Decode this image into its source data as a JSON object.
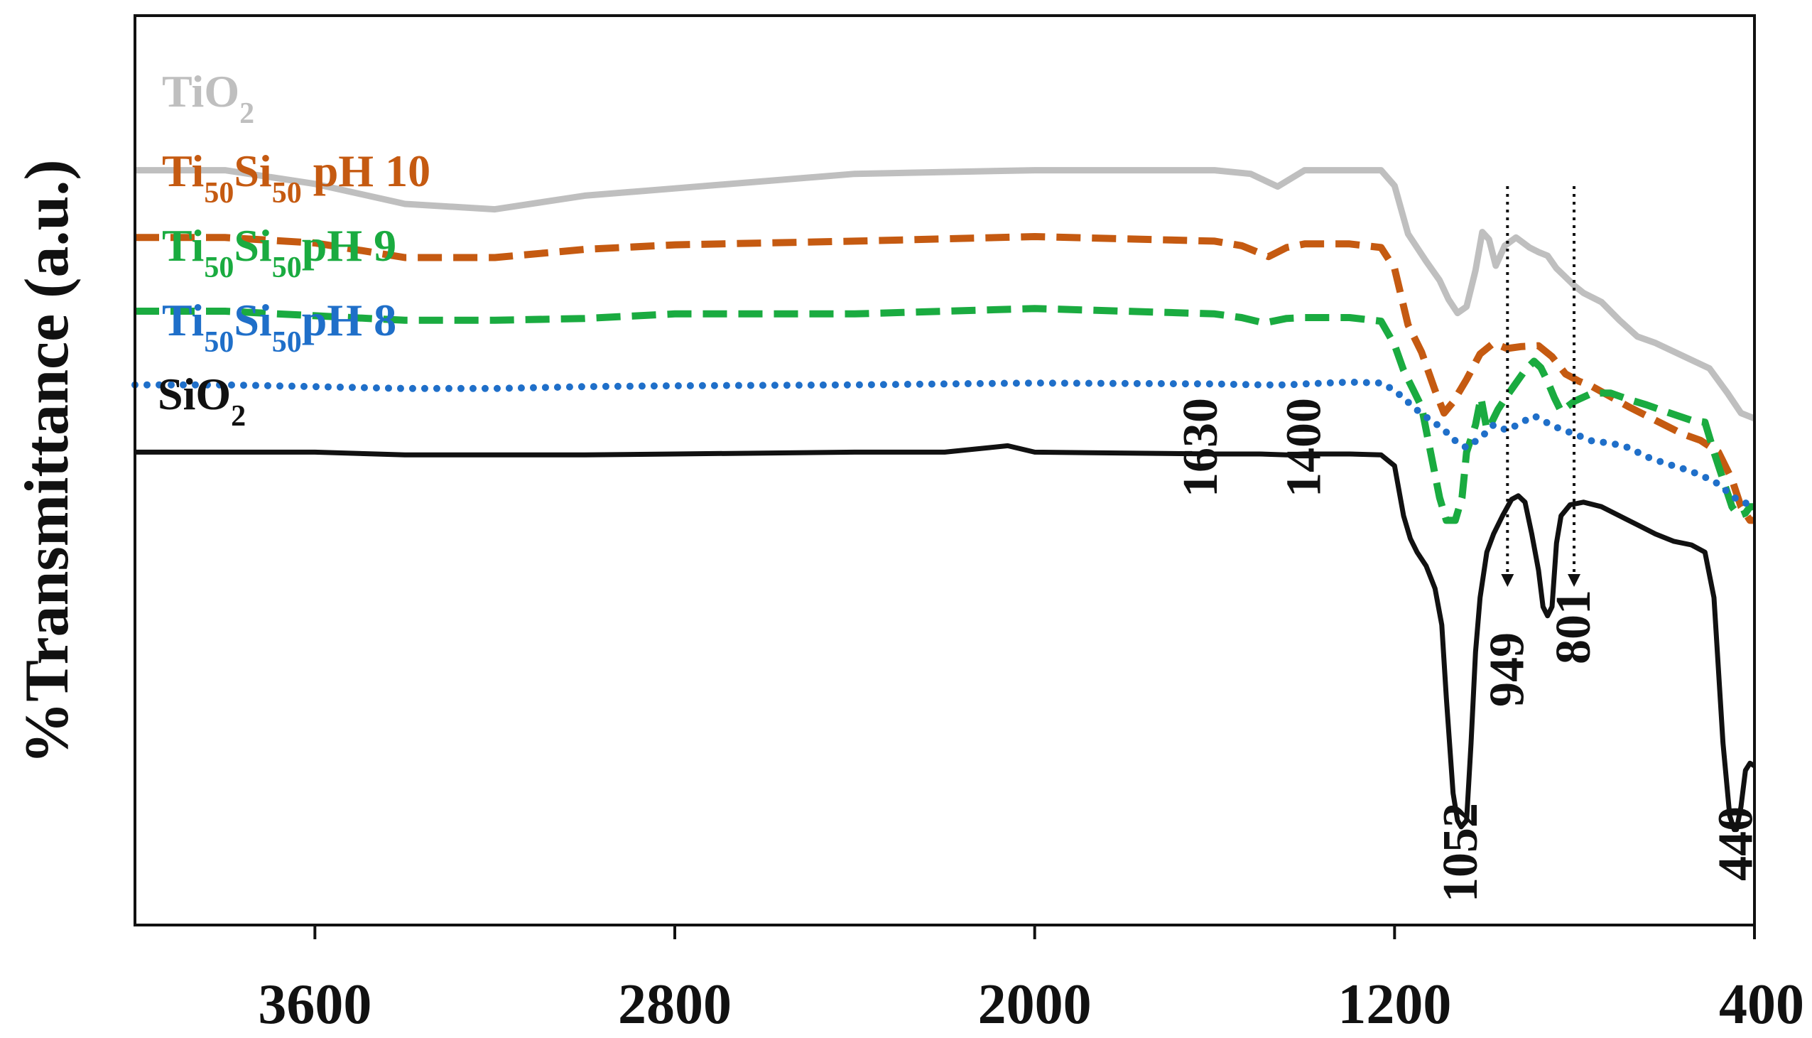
{
  "chart_data": {
    "type": "line",
    "title": "",
    "xlabel": "",
    "ylabel": "%Transmittance (a.u.)",
    "xlim": [
      4000,
      400
    ],
    "x_reversed": true,
    "xticks": [
      3600,
      2800,
      2000,
      1200,
      400
    ],
    "xtick_labels": [
      "3600",
      "2800",
      "2000",
      "1200",
      "400"
    ],
    "grid": false,
    "legend_placement": "inline-left",
    "series": [
      {
        "key": "tio2",
        "label_parts": [
          {
            "t": "TiO"
          },
          {
            "t": "2",
            "sub": true
          }
        ],
        "color": "#bfbfbf",
        "style": "solid",
        "points": [
          [
            4000,
            0.83
          ],
          [
            3800,
            0.83
          ],
          [
            3600,
            0.815
          ],
          [
            3400,
            0.793
          ],
          [
            3200,
            0.787
          ],
          [
            3000,
            0.802
          ],
          [
            2800,
            0.81
          ],
          [
            2400,
            0.826
          ],
          [
            2000,
            0.83
          ],
          [
            1600,
            0.83
          ],
          [
            1520,
            0.826
          ],
          [
            1460,
            0.812
          ],
          [
            1440,
            0.818
          ],
          [
            1400,
            0.83
          ],
          [
            1300,
            0.83
          ],
          [
            1230,
            0.83
          ],
          [
            1200,
            0.813
          ],
          [
            1170,
            0.76
          ],
          [
            1130,
            0.73
          ],
          [
            1100,
            0.709
          ],
          [
            1080,
            0.688
          ],
          [
            1060,
            0.673
          ],
          [
            1040,
            0.68
          ],
          [
            1020,
            0.72
          ],
          [
            1005,
            0.762
          ],
          [
            990,
            0.754
          ],
          [
            975,
            0.725
          ],
          [
            955,
            0.747
          ],
          [
            930,
            0.756
          ],
          [
            900,
            0.745
          ],
          [
            880,
            0.74
          ],
          [
            860,
            0.736
          ],
          [
            840,
            0.722
          ],
          [
            800,
            0.703
          ],
          [
            780,
            0.695
          ],
          [
            740,
            0.685
          ],
          [
            700,
            0.665
          ],
          [
            660,
            0.647
          ],
          [
            620,
            0.64
          ],
          [
            560,
            0.626
          ],
          [
            500,
            0.612
          ],
          [
            460,
            0.585
          ],
          [
            430,
            0.563
          ],
          [
            400,
            0.557
          ]
        ]
      },
      {
        "key": "ph10",
        "label_parts": [
          {
            "t": "Ti"
          },
          {
            "t": "50",
            "sub": true
          },
          {
            "t": "Si"
          },
          {
            "t": "50",
            "sub": true
          },
          {
            "t": " pH 10"
          }
        ],
        "color": "#c55a11",
        "style": "dashed",
        "points": [
          [
            4000,
            0.756
          ],
          [
            3800,
            0.756
          ],
          [
            3600,
            0.75
          ],
          [
            3400,
            0.734
          ],
          [
            3200,
            0.734
          ],
          [
            3000,
            0.743
          ],
          [
            2800,
            0.748
          ],
          [
            2400,
            0.752
          ],
          [
            2000,
            0.757
          ],
          [
            1600,
            0.752
          ],
          [
            1540,
            0.747
          ],
          [
            1480,
            0.735
          ],
          [
            1440,
            0.745
          ],
          [
            1400,
            0.749
          ],
          [
            1300,
            0.749
          ],
          [
            1230,
            0.745
          ],
          [
            1200,
            0.722
          ],
          [
            1170,
            0.66
          ],
          [
            1140,
            0.63
          ],
          [
            1110,
            0.588
          ],
          [
            1090,
            0.563
          ],
          [
            1070,
            0.575
          ],
          [
            1040,
            0.6
          ],
          [
            1010,
            0.628
          ],
          [
            980,
            0.64
          ],
          [
            950,
            0.634
          ],
          [
            920,
            0.636
          ],
          [
            880,
            0.637
          ],
          [
            850,
            0.625
          ],
          [
            820,
            0.606
          ],
          [
            790,
            0.598
          ],
          [
            760,
            0.592
          ],
          [
            720,
            0.581
          ],
          [
            680,
            0.57
          ],
          [
            640,
            0.56
          ],
          [
            600,
            0.55
          ],
          [
            560,
            0.54
          ],
          [
            520,
            0.533
          ],
          [
            480,
            0.52
          ],
          [
            450,
            0.49
          ],
          [
            430,
            0.46
          ],
          [
            410,
            0.445
          ],
          [
            400,
            0.445
          ]
        ]
      },
      {
        "key": "ph9",
        "label_parts": [
          {
            "t": "Ti"
          },
          {
            "t": "50",
            "sub": true
          },
          {
            "t": "Si"
          },
          {
            "t": "50",
            "sub": true
          },
          {
            "t": "pH 9"
          }
        ],
        "color": "#1aab40",
        "style": "dashed",
        "points": [
          [
            4000,
            0.675
          ],
          [
            3800,
            0.675
          ],
          [
            3600,
            0.67
          ],
          [
            3400,
            0.665
          ],
          [
            3200,
            0.665
          ],
          [
            3000,
            0.667
          ],
          [
            2800,
            0.672
          ],
          [
            2400,
            0.672
          ],
          [
            2000,
            0.678
          ],
          [
            1600,
            0.672
          ],
          [
            1540,
            0.668
          ],
          [
            1490,
            0.662
          ],
          [
            1440,
            0.667
          ],
          [
            1400,
            0.668
          ],
          [
            1300,
            0.668
          ],
          [
            1230,
            0.664
          ],
          [
            1200,
            0.638
          ],
          [
            1180,
            0.61
          ],
          [
            1160,
            0.59
          ],
          [
            1140,
            0.57
          ],
          [
            1120,
            0.52
          ],
          [
            1100,
            0.47
          ],
          [
            1085,
            0.445
          ],
          [
            1065,
            0.445
          ],
          [
            1050,
            0.47
          ],
          [
            1040,
            0.52
          ],
          [
            1020,
            0.55
          ],
          [
            1008,
            0.58
          ],
          [
            995,
            0.545
          ],
          [
            985,
            0.552
          ],
          [
            970,
            0.567
          ],
          [
            950,
            0.582
          ],
          [
            930,
            0.596
          ],
          [
            910,
            0.61
          ],
          [
            890,
            0.62
          ],
          [
            875,
            0.613
          ],
          [
            860,
            0.598
          ],
          [
            845,
            0.58
          ],
          [
            830,
            0.565
          ],
          [
            800,
            0.576
          ],
          [
            760,
            0.585
          ],
          [
            720,
            0.585
          ],
          [
            680,
            0.578
          ],
          [
            640,
            0.572
          ],
          [
            600,
            0.565
          ],
          [
            570,
            0.56
          ],
          [
            540,
            0.555
          ],
          [
            510,
            0.553
          ],
          [
            490,
            0.52
          ],
          [
            470,
            0.49
          ],
          [
            450,
            0.46
          ],
          [
            435,
            0.45
          ],
          [
            420,
            0.453
          ],
          [
            410,
            0.46
          ],
          [
            400,
            0.46
          ]
        ]
      },
      {
        "key": "ph8",
        "label_parts": [
          {
            "t": "Ti"
          },
          {
            "t": "50",
            "sub": true
          },
          {
            "t": "Si"
          },
          {
            "t": "50",
            "sub": true
          },
          {
            "t": "pH 8"
          }
        ],
        "color": "#1f6fc9",
        "style": "dotted",
        "points": [
          [
            4000,
            0.594
          ],
          [
            3800,
            0.594
          ],
          [
            3600,
            0.592
          ],
          [
            3400,
            0.59
          ],
          [
            3200,
            0.59
          ],
          [
            3000,
            0.592
          ],
          [
            2800,
            0.593
          ],
          [
            2400,
            0.594
          ],
          [
            2000,
            0.596
          ],
          [
            1600,
            0.595
          ],
          [
            1500,
            0.594
          ],
          [
            1440,
            0.594
          ],
          [
            1400,
            0.595
          ],
          [
            1300,
            0.597
          ],
          [
            1230,
            0.596
          ],
          [
            1200,
            0.588
          ],
          [
            1170,
            0.575
          ],
          [
            1140,
            0.562
          ],
          [
            1110,
            0.552
          ],
          [
            1080,
            0.54
          ],
          [
            1060,
            0.53
          ],
          [
            1040,
            0.525
          ],
          [
            1020,
            0.532
          ],
          [
            1000,
            0.54
          ],
          [
            980,
            0.55
          ],
          [
            950,
            0.544
          ],
          [
            920,
            0.552
          ],
          [
            890,
            0.56
          ],
          [
            860,
            0.552
          ],
          [
            830,
            0.545
          ],
          [
            800,
            0.54
          ],
          [
            760,
            0.532
          ],
          [
            720,
            0.53
          ],
          [
            680,
            0.525
          ],
          [
            640,
            0.515
          ],
          [
            600,
            0.508
          ],
          [
            560,
            0.502
          ],
          [
            520,
            0.495
          ],
          [
            480,
            0.485
          ],
          [
            450,
            0.472
          ],
          [
            430,
            0.465
          ],
          [
            400,
            0.462
          ]
        ]
      },
      {
        "key": "sio2",
        "label_parts": [
          {
            "t": "SiO"
          },
          {
            "t": "2",
            "sub": true
          }
        ],
        "color": "#111111",
        "style": "solid",
        "points": [
          [
            4000,
            0.52
          ],
          [
            3800,
            0.52
          ],
          [
            3600,
            0.52
          ],
          [
            3400,
            0.517
          ],
          [
            3200,
            0.517
          ],
          [
            3000,
            0.517
          ],
          [
            2800,
            0.518
          ],
          [
            2400,
            0.52
          ],
          [
            2200,
            0.52
          ],
          [
            2100,
            0.525
          ],
          [
            2060,
            0.527
          ],
          [
            2000,
            0.52
          ],
          [
            1600,
            0.518
          ],
          [
            1500,
            0.518
          ],
          [
            1440,
            0.517
          ],
          [
            1400,
            0.518
          ],
          [
            1300,
            0.518
          ],
          [
            1230,
            0.517
          ],
          [
            1200,
            0.505
          ],
          [
            1180,
            0.45
          ],
          [
            1165,
            0.425
          ],
          [
            1150,
            0.41
          ],
          [
            1130,
            0.395
          ],
          [
            1110,
            0.37
          ],
          [
            1095,
            0.33
          ],
          [
            1085,
            0.25
          ],
          [
            1070,
            0.145
          ],
          [
            1060,
            0.115
          ],
          [
            1052,
            0.108
          ],
          [
            1040,
            0.115
          ],
          [
            1030,
            0.2
          ],
          [
            1020,
            0.3
          ],
          [
            1010,
            0.36
          ],
          [
            995,
            0.41
          ],
          [
            980,
            0.43
          ],
          [
            960,
            0.45
          ],
          [
            940,
            0.468
          ],
          [
            925,
            0.472
          ],
          [
            910,
            0.465
          ],
          [
            895,
            0.43
          ],
          [
            880,
            0.39
          ],
          [
            870,
            0.35
          ],
          [
            860,
            0.34
          ],
          [
            850,
            0.35
          ],
          [
            840,
            0.42
          ],
          [
            830,
            0.45
          ],
          [
            810,
            0.462
          ],
          [
            780,
            0.465
          ],
          [
            740,
            0.46
          ],
          [
            700,
            0.45
          ],
          [
            660,
            0.44
          ],
          [
            620,
            0.43
          ],
          [
            580,
            0.422
          ],
          [
            540,
            0.418
          ],
          [
            510,
            0.41
          ],
          [
            490,
            0.36
          ],
          [
            470,
            0.2
          ],
          [
            455,
            0.12
          ],
          [
            445,
            0.105
          ],
          [
            440,
            0.105
          ],
          [
            430,
            0.13
          ],
          [
            420,
            0.17
          ],
          [
            410,
            0.178
          ],
          [
            400,
            0.175
          ]
        ]
      }
    ],
    "annotations": [
      {
        "text": "1630",
        "x": 1630
      },
      {
        "text": "1400",
        "x": 1400
      },
      {
        "text": "1052",
        "x": 1052
      },
      {
        "text": "949",
        "x": 949
      },
      {
        "text": "801",
        "x": 801
      },
      {
        "text": "440",
        "x": 440
      }
    ],
    "marker_lines": [
      949,
      801
    ]
  }
}
